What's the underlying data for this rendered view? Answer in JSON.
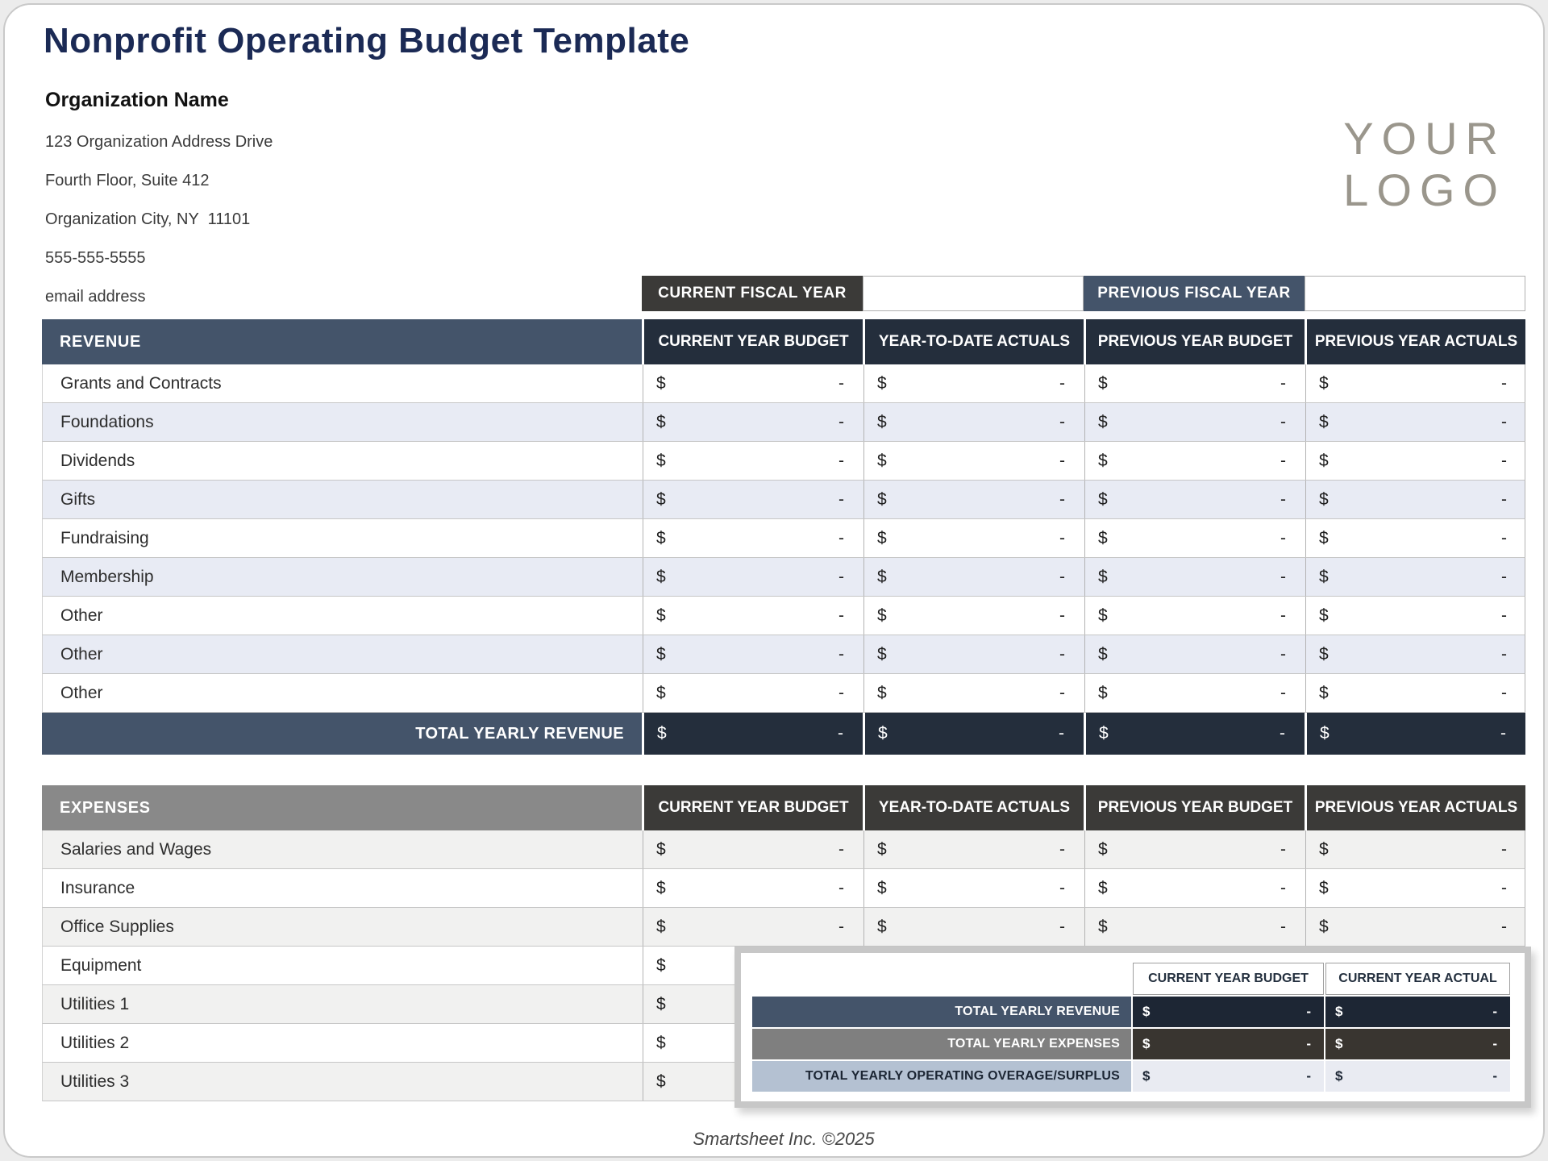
{
  "page": {
    "title": "Nonprofit Operating Budget Template",
    "footer": "Smartsheet Inc. ©2025"
  },
  "org": {
    "name": "Organization Name",
    "address_lines": [
      "123 Organization Address Drive",
      "Fourth Floor, Suite 412",
      "Organization City, NY  11101",
      "555-555-5555",
      "email address"
    ]
  },
  "logo": {
    "line1": "YOUR",
    "line2": "LOGO"
  },
  "fiscal": {
    "current_label": "CURRENT FISCAL YEAR",
    "current_value": "",
    "previous_label": "PREVIOUS FISCAL YEAR",
    "previous_value": ""
  },
  "table_columns": [
    "CURRENT YEAR BUDGET",
    "YEAR-TO-DATE ACTUALS",
    "PREVIOUS YEAR BUDGET",
    "PREVIOUS YEAR ACTUALS"
  ],
  "cell": {
    "currency": "$",
    "empty": "-"
  },
  "revenue": {
    "section_label": "REVENUE",
    "rows": [
      "Grants and Contracts",
      "Foundations",
      "Dividends",
      "Gifts",
      "Fundraising",
      "Membership",
      "Other",
      "Other",
      "Other"
    ],
    "total_label": "TOTAL YEARLY REVENUE"
  },
  "expenses": {
    "section_label": "EXPENSES",
    "rows": [
      "Salaries and Wages",
      "Insurance",
      "Office Supplies",
      "Equipment",
      "Utilities 1",
      "Utilities 2",
      "Utilities 3"
    ]
  },
  "summary": {
    "columns": [
      "CURRENT YEAR BUDGET",
      "CURRENT YEAR ACTUAL"
    ],
    "rows": [
      {
        "label": "TOTAL YEARLY REVENUE",
        "variant": "revenue"
      },
      {
        "label": "TOTAL YEARLY EXPENSES",
        "variant": "expenses"
      },
      {
        "label": "TOTAL YEARLY OPERATING OVERAGE/SURPLUS",
        "variant": "surplus"
      }
    ]
  },
  "colors": {
    "title_navy": "#1b2a55",
    "slate_blue": "#44546a",
    "dark_navy": "#242e3c",
    "very_dark_navy": "#1d2634",
    "charcoal": "#3b3a38",
    "dark_charcoal": "#393530",
    "mid_gray": "#898989",
    "row_lavender": "#e8ebf4",
    "row_gray": "#f1f1f0",
    "steel_blue": "#b4c1d2",
    "surplus_bg": "#e9ebf2",
    "logo_gray": "#9a968c"
  }
}
